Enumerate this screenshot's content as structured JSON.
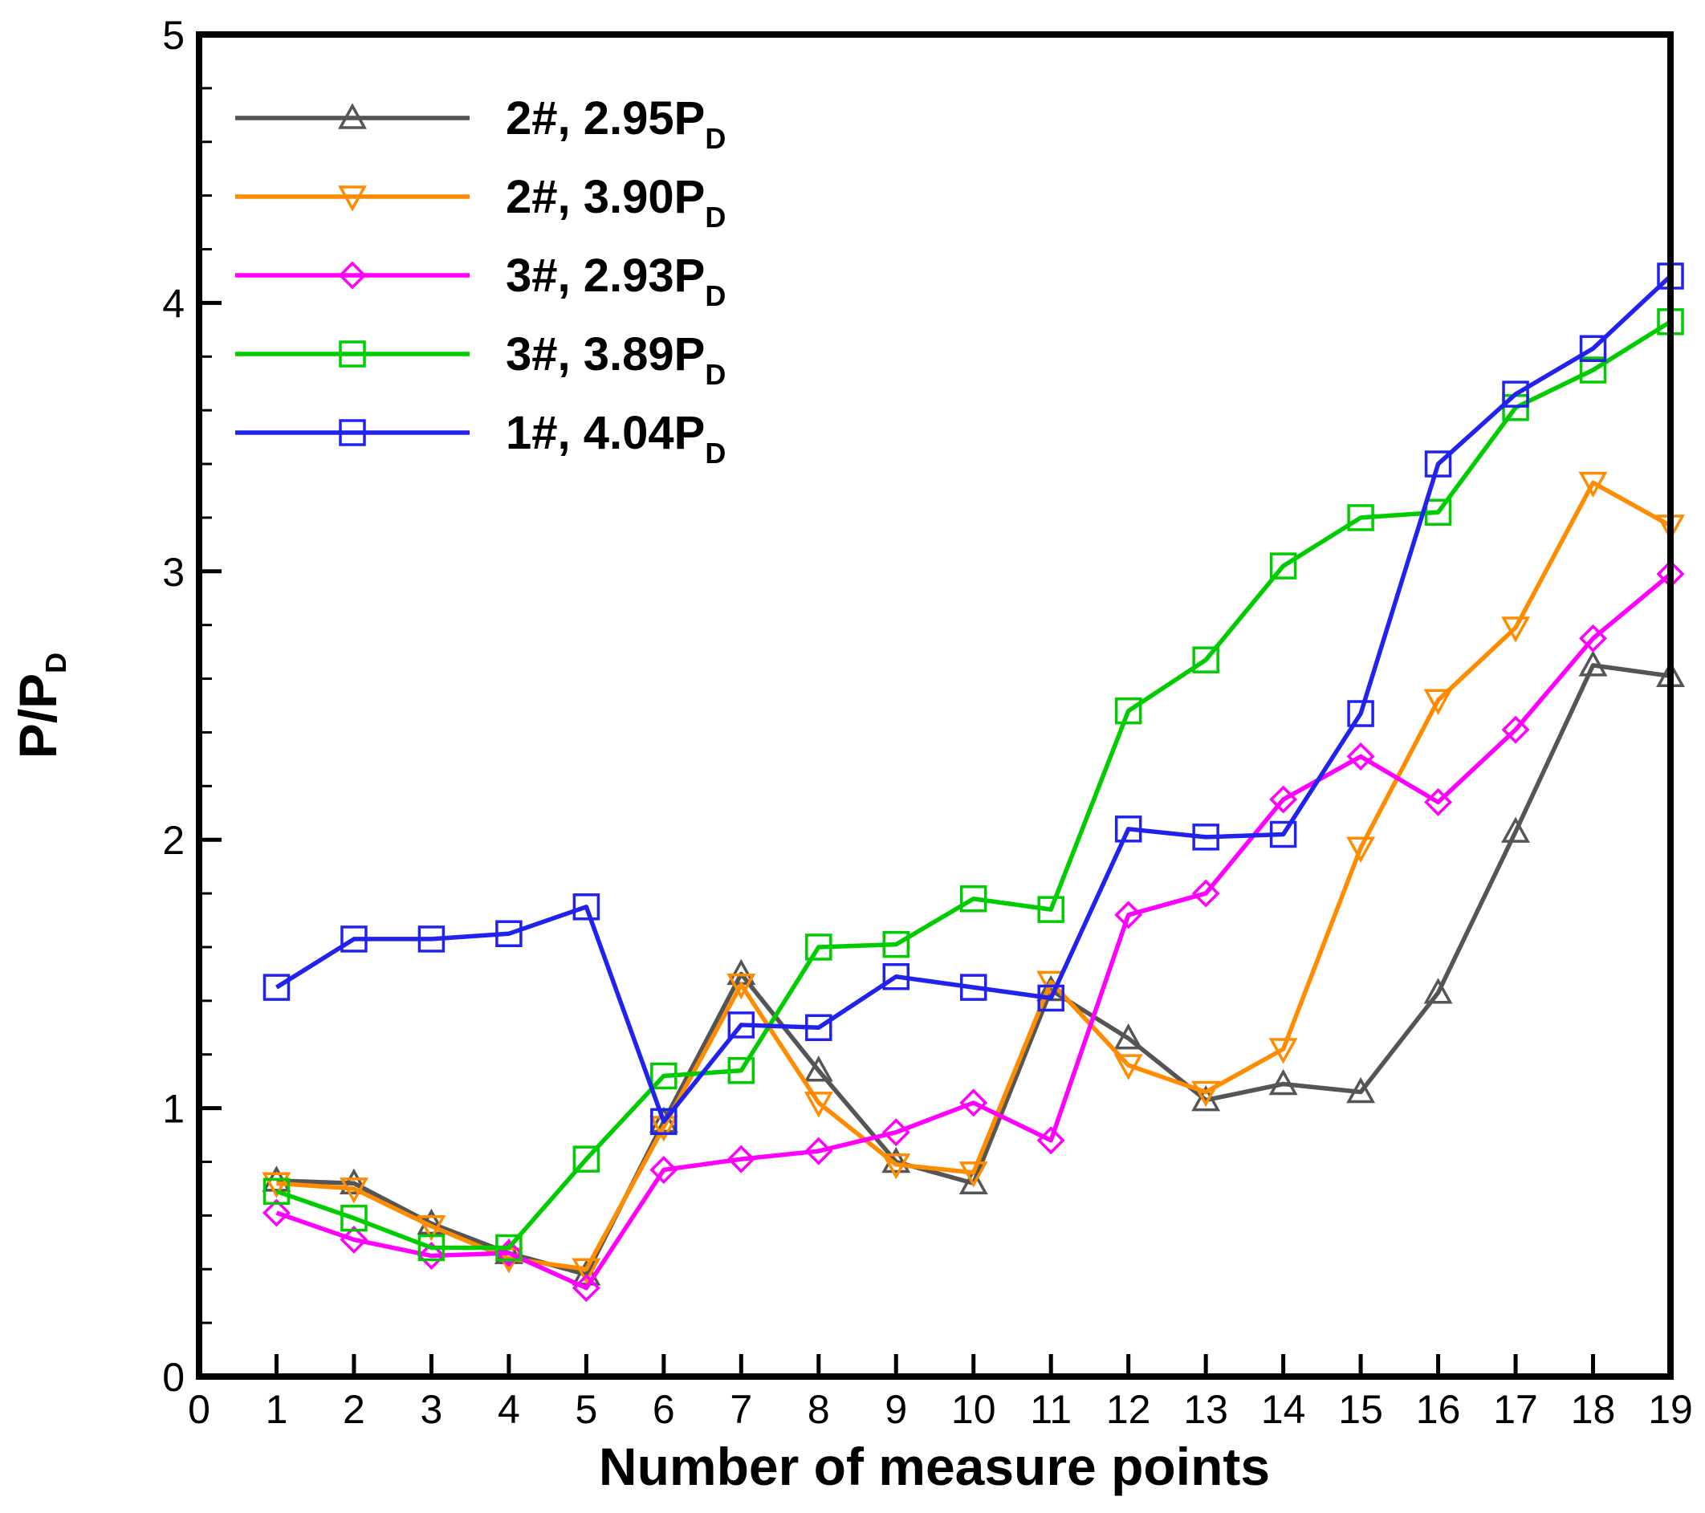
{
  "chart_data": {
    "type": "line",
    "xlabel": "Number of measure points",
    "ylabel": {
      "main": "P/P",
      "sub": "D"
    },
    "xlim": [
      0,
      19
    ],
    "ylim": [
      0,
      5
    ],
    "xticks": [
      0,
      1,
      2,
      3,
      4,
      5,
      6,
      7,
      8,
      9,
      10,
      11,
      12,
      13,
      14,
      15,
      16,
      17,
      18,
      19
    ],
    "yticks": [
      0,
      1,
      2,
      3,
      4,
      5
    ],
    "legend_position": "top-left",
    "x": [
      1,
      2,
      3,
      4,
      5,
      6,
      7,
      8,
      9,
      10,
      11,
      12,
      13,
      14,
      15,
      16,
      17,
      18,
      19
    ],
    "series": [
      {
        "name": "2#, 2.95P",
        "name_sub": "D",
        "color": "#555555",
        "marker": "triangle-up",
        "values": [
          0.73,
          0.72,
          0.57,
          0.46,
          0.38,
          0.95,
          1.5,
          1.14,
          0.8,
          0.72,
          1.44,
          1.26,
          1.03,
          1.09,
          1.06,
          1.43,
          2.03,
          2.65,
          2.61
        ]
      },
      {
        "name": "2#, 3.90P",
        "name_sub": "D",
        "color": "#ff8c00",
        "marker": "triangle-down",
        "values": [
          0.72,
          0.7,
          0.56,
          0.44,
          0.4,
          0.93,
          1.46,
          1.02,
          0.79,
          0.76,
          1.47,
          1.16,
          1.06,
          1.22,
          1.97,
          2.52,
          2.79,
          3.33,
          3.17
        ]
      },
      {
        "name": "3#, 2.93P",
        "name_sub": "D",
        "color": "#ff00ff",
        "marker": "diamond",
        "values": [
          0.61,
          0.51,
          0.45,
          0.46,
          0.33,
          0.77,
          0.81,
          0.84,
          0.91,
          1.02,
          0.88,
          1.72,
          1.8,
          2.15,
          2.31,
          2.14,
          2.41,
          2.75,
          2.99
        ]
      },
      {
        "name": "3#, 3.89P",
        "name_sub": "D",
        "color": "#00cc00",
        "marker": "square",
        "values": [
          0.69,
          0.59,
          0.48,
          0.48,
          0.81,
          1.12,
          1.14,
          1.6,
          1.61,
          1.78,
          1.74,
          2.48,
          2.67,
          3.02,
          3.2,
          3.22,
          3.61,
          3.75,
          3.93
        ]
      },
      {
        "name": "1#, 4.04P",
        "name_sub": "D",
        "color": "#2222ee",
        "marker": "square",
        "values": [
          1.45,
          1.63,
          1.63,
          1.65,
          1.75,
          0.95,
          1.31,
          1.3,
          1.49,
          1.45,
          1.41,
          2.04,
          2.01,
          2.02,
          2.47,
          3.4,
          3.66,
          3.83,
          4.1
        ]
      }
    ]
  }
}
